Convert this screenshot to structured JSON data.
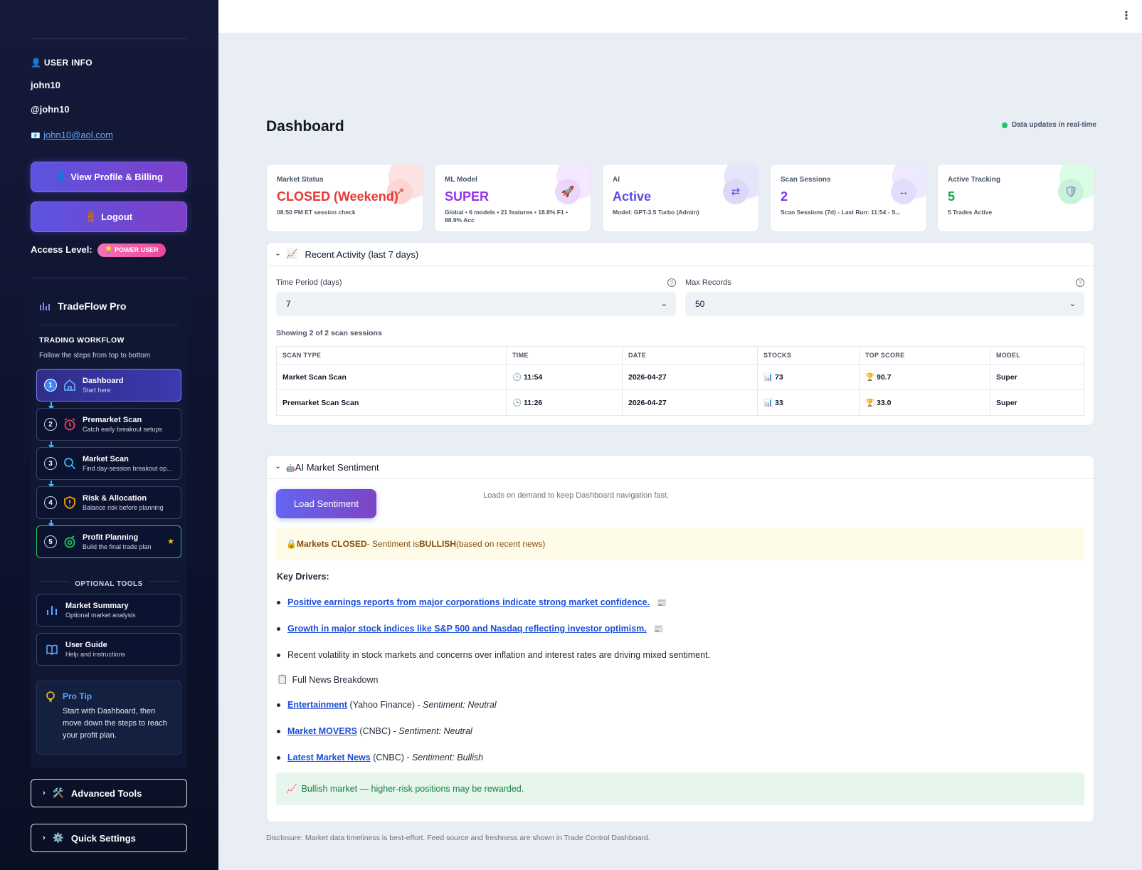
{
  "user": {
    "heading": "USER INFO",
    "name": "john10",
    "handle": "@john10",
    "email": "john10@aol.com",
    "profile_button": "View Profile & Billing",
    "logout_button": "Logout",
    "access_label": "Access Level:",
    "access_badge": "POWER USER"
  },
  "workflow": {
    "app_name": "TradeFlow Pro",
    "heading": "TRADING WORKFLOW",
    "subheading": "Follow the steps from top to bottom",
    "steps": [
      {
        "num": "1",
        "title": "Dashboard",
        "subtitle": "Start here"
      },
      {
        "num": "2",
        "title": "Premarket Scan",
        "subtitle": "Catch early breakout setups"
      },
      {
        "num": "3",
        "title": "Market Scan",
        "subtitle": "Find day-session breakout opp..."
      },
      {
        "num": "4",
        "title": "Risk & Allocation",
        "subtitle": "Balance risk before planning"
      },
      {
        "num": "5",
        "title": "Profit Planning",
        "subtitle": "Build the final trade plan"
      }
    ],
    "optional_heading": "OPTIONAL TOOLS",
    "tools": [
      {
        "title": "Market Summary",
        "subtitle": "Optional market analysis"
      },
      {
        "title": "User Guide",
        "subtitle": "Help and instructions"
      }
    ],
    "tip_title": "Pro Tip",
    "tip_text": "Start with Dashboard, then move down the steps to reach your profit plan."
  },
  "advanced_tools": "Advanced Tools",
  "quick_settings": "Quick Settings",
  "page": {
    "title": "Dashboard",
    "realtime": "Data updates in real-time"
  },
  "cards": [
    {
      "label": "Market Status",
      "value": "CLOSED (Weekend)",
      "sub": "08:50 PM ET session check",
      "color": "#e53935",
      "icon": "arrow-up-right-icon"
    },
    {
      "label": "ML Model",
      "value": "SUPER",
      "sub": "Global • 6 models • 21 features • 18.8% F1 • 88.9% Acc",
      "color": "#9333ea",
      "icon": "rocket-icon"
    },
    {
      "label": "AI",
      "value": "Active",
      "sub": "Model: GPT-3.5 Turbo (Admin)",
      "color": "#5b4fe0",
      "icon": "swap-icon"
    },
    {
      "label": "Scan Sessions",
      "value": "2",
      "sub": "Scan Sessions (7d) - Last Run: 11:54 - S...",
      "color": "#7c3aed",
      "icon": "resize-icon"
    },
    {
      "label": "Active Tracking",
      "value": "5",
      "sub": "5 Trades Active",
      "color": "#16a34a",
      "icon": "shield-icon"
    }
  ],
  "activity": {
    "header": "Recent Activity (last 7 days)",
    "time_label": "Time Period (days)",
    "time_value": "7",
    "max_label": "Max Records",
    "max_value": "50",
    "showing": "Showing 2 of 2 scan sessions",
    "columns": [
      "SCAN TYPE",
      "TIME",
      "DATE",
      "STOCKS",
      "TOP SCORE",
      "MODEL"
    ],
    "rows": [
      {
        "type": "Market Scan Scan",
        "time": "11:54",
        "date": "2026-04-27",
        "stocks": "73",
        "score": "90.7",
        "model": "Super"
      },
      {
        "type": "Premarket Scan Scan",
        "time": "11:26",
        "date": "2026-04-27",
        "stocks": "33",
        "score": "33.0",
        "model": "Super"
      }
    ]
  },
  "sentiment": {
    "header": "AI Market Sentiment",
    "load_button": "Load Sentiment",
    "note": "Loads on demand to keep Dashboard navigation fast.",
    "status_closed": "Markets CLOSED",
    "status_mid": " - Sentiment is ",
    "status_bull": "BULLISH",
    "status_end": " (based on recent news)",
    "drivers_heading": "Key Drivers:",
    "drivers": [
      "Positive earnings reports from major corporations indicate strong market confidence.",
      "Growth in major stock indices like S&P 500 and Nasdaq reflecting investor optimism.",
      "Recent volatility in stock markets and concerns over inflation and interest rates are driving mixed sentiment."
    ],
    "breakdown_heading": "Full News Breakdown",
    "news": [
      {
        "title": "Entertainment",
        "source": " (Yahoo Finance) - ",
        "sentiment": "Sentiment: Neutral"
      },
      {
        "title": "Market MOVERS",
        "source": " (CNBC) - ",
        "sentiment": "Sentiment: Neutral"
      },
      {
        "title": "Latest Market News",
        "source": " (CNBC) - ",
        "sentiment": "Sentiment: Bullish"
      }
    ],
    "outlook": "Bullish market — higher-risk positions may be rewarded."
  },
  "disclosure": "Disclosure: Market data timeliness is best-effort. Feed source and freshness are shown in Trade Control Dashboard."
}
